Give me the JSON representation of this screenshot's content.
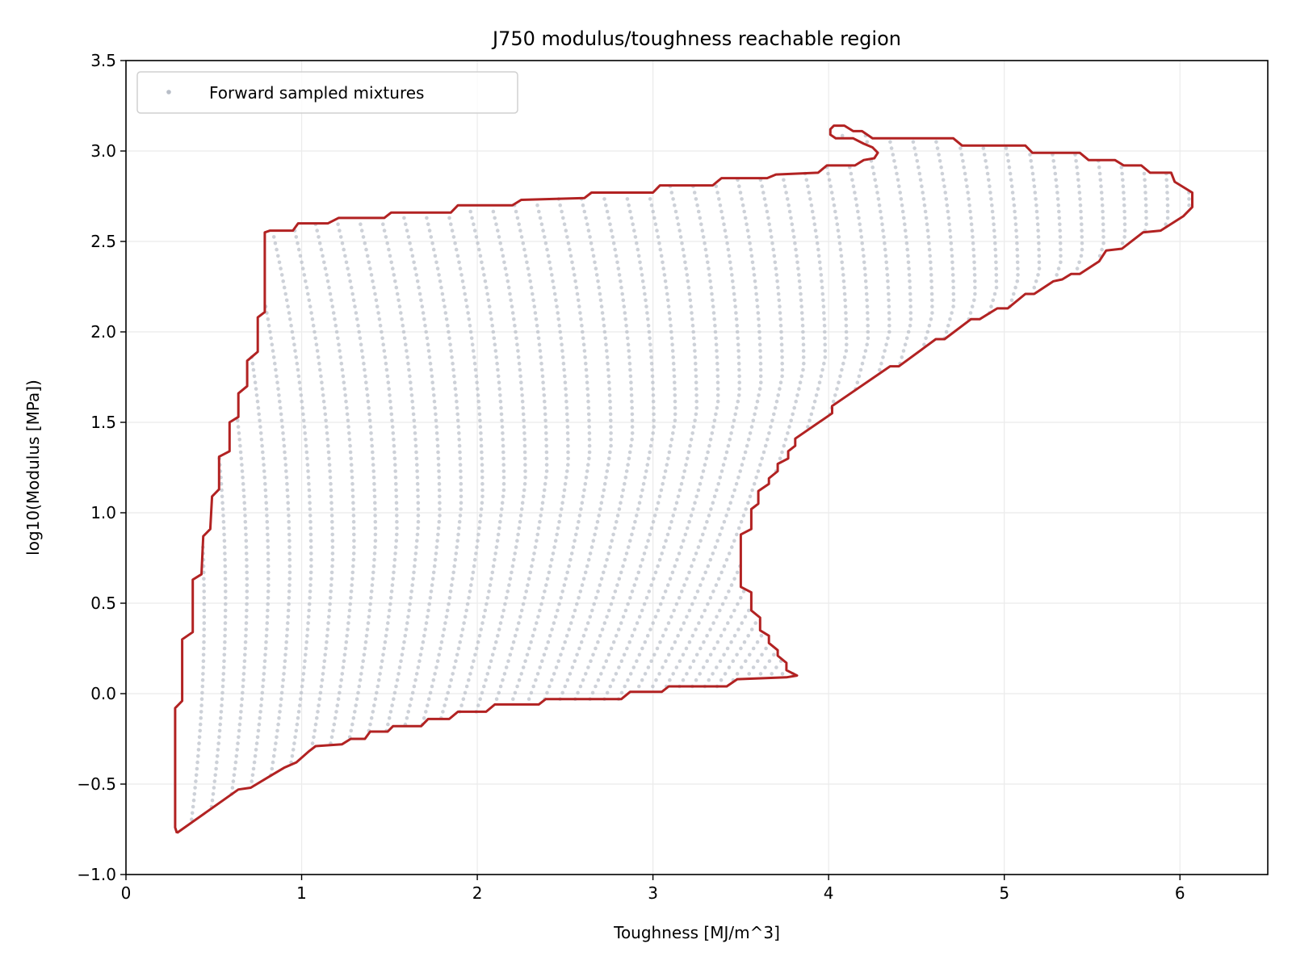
{
  "chart_data": {
    "type": "scatter",
    "title": "J750 modulus/toughness reachable region",
    "xlabel": "Toughness [MJ/m^3]",
    "ylabel": "log10(Modulus [MPa])",
    "xlim": [
      0,
      6.5
    ],
    "ylim": [
      -1.0,
      3.5
    ],
    "xticks": [
      0,
      1,
      2,
      3,
      4,
      5,
      6
    ],
    "xtick_labels": [
      "0",
      "1",
      "2",
      "3",
      "4",
      "5",
      "6"
    ],
    "yticks": [
      -1.0,
      -0.5,
      0.0,
      0.5,
      1.0,
      1.5,
      2.0,
      2.5,
      3.0,
      3.5
    ],
    "ytick_labels": [
      "−1.0",
      "−0.5",
      "0.0",
      "0.5",
      "1.0",
      "1.5",
      "2.0",
      "2.5",
      "3.0",
      "3.5"
    ],
    "grid": true,
    "legend_placement": "top-left",
    "series": [
      {
        "name": "Forward sampled mixtures",
        "kind": "scatter",
        "color": "#b8bec8"
      }
    ],
    "boundary": {
      "kind": "line",
      "color": "#b22222",
      "points": [
        [
          0.29,
          -0.77
        ],
        [
          0.28,
          -0.74
        ],
        [
          0.28,
          -0.08
        ],
        [
          0.32,
          -0.04
        ],
        [
          0.32,
          0.3
        ],
        [
          0.38,
          0.34
        ],
        [
          0.38,
          0.63
        ],
        [
          0.43,
          0.66
        ],
        [
          0.44,
          0.87
        ],
        [
          0.48,
          0.91
        ],
        [
          0.49,
          1.09
        ],
        [
          0.53,
          1.13
        ],
        [
          0.53,
          1.31
        ],
        [
          0.59,
          1.34
        ],
        [
          0.59,
          1.5
        ],
        [
          0.64,
          1.53
        ],
        [
          0.64,
          1.66
        ],
        [
          0.69,
          1.7
        ],
        [
          0.69,
          1.84
        ],
        [
          0.75,
          1.89
        ],
        [
          0.75,
          2.08
        ],
        [
          0.79,
          2.11
        ],
        [
          0.79,
          2.55
        ],
        [
          0.82,
          2.56
        ],
        [
          0.95,
          2.56
        ],
        [
          0.98,
          2.6
        ],
        [
          1.15,
          2.6
        ],
        [
          1.21,
          2.63
        ],
        [
          1.47,
          2.63
        ],
        [
          1.51,
          2.66
        ],
        [
          1.85,
          2.66
        ],
        [
          1.89,
          2.7
        ],
        [
          2.2,
          2.7
        ],
        [
          2.25,
          2.73
        ],
        [
          2.61,
          2.74
        ],
        [
          2.65,
          2.77
        ],
        [
          3.0,
          2.77
        ],
        [
          3.04,
          2.81
        ],
        [
          3.34,
          2.81
        ],
        [
          3.39,
          2.85
        ],
        [
          3.65,
          2.85
        ],
        [
          3.7,
          2.87
        ],
        [
          3.94,
          2.88
        ],
        [
          3.99,
          2.92
        ],
        [
          4.15,
          2.92
        ],
        [
          4.2,
          2.95
        ],
        [
          4.26,
          2.96
        ],
        [
          4.28,
          2.99
        ],
        [
          4.25,
          3.02
        ],
        [
          4.2,
          3.04
        ],
        [
          4.14,
          3.07
        ],
        [
          4.04,
          3.07
        ],
        [
          4.01,
          3.09
        ],
        [
          4.01,
          3.12
        ],
        [
          4.03,
          3.14
        ],
        [
          4.09,
          3.14
        ],
        [
          4.14,
          3.11
        ],
        [
          4.19,
          3.11
        ],
        [
          4.25,
          3.07
        ],
        [
          4.71,
          3.07
        ],
        [
          4.76,
          3.03
        ],
        [
          5.12,
          3.03
        ],
        [
          5.16,
          2.99
        ],
        [
          5.43,
          2.99
        ],
        [
          5.48,
          2.95
        ],
        [
          5.63,
          2.95
        ],
        [
          5.68,
          2.92
        ],
        [
          5.78,
          2.92
        ],
        [
          5.83,
          2.88
        ],
        [
          5.95,
          2.88
        ],
        [
          5.97,
          2.83
        ],
        [
          6.07,
          2.77
        ],
        [
          6.07,
          2.69
        ],
        [
          6.02,
          2.64
        ],
        [
          5.89,
          2.56
        ],
        [
          5.79,
          2.55
        ],
        [
          5.67,
          2.46
        ],
        [
          5.58,
          2.45
        ],
        [
          5.54,
          2.39
        ],
        [
          5.43,
          2.32
        ],
        [
          5.38,
          2.32
        ],
        [
          5.33,
          2.29
        ],
        [
          5.28,
          2.28
        ],
        [
          5.17,
          2.21
        ],
        [
          5.12,
          2.21
        ],
        [
          5.02,
          2.13
        ],
        [
          4.96,
          2.13
        ],
        [
          4.86,
          2.07
        ],
        [
          4.81,
          2.07
        ],
        [
          4.66,
          1.96
        ],
        [
          4.61,
          1.96
        ],
        [
          4.4,
          1.81
        ],
        [
          4.35,
          1.81
        ],
        [
          4.02,
          1.59
        ],
        [
          4.02,
          1.55
        ],
        [
          3.81,
          1.41
        ],
        [
          3.81,
          1.37
        ],
        [
          3.77,
          1.34
        ],
        [
          3.77,
          1.3
        ],
        [
          3.71,
          1.27
        ],
        [
          3.71,
          1.23
        ],
        [
          3.66,
          1.19
        ],
        [
          3.66,
          1.16
        ],
        [
          3.6,
          1.12
        ],
        [
          3.6,
          1.05
        ],
        [
          3.56,
          1.02
        ],
        [
          3.56,
          0.91
        ],
        [
          3.5,
          0.88
        ],
        [
          3.5,
          0.59
        ],
        [
          3.56,
          0.56
        ],
        [
          3.56,
          0.46
        ],
        [
          3.61,
          0.42
        ],
        [
          3.61,
          0.35
        ],
        [
          3.66,
          0.32
        ],
        [
          3.66,
          0.28
        ],
        [
          3.71,
          0.24
        ],
        [
          3.71,
          0.21
        ],
        [
          3.76,
          0.17
        ],
        [
          3.76,
          0.13
        ],
        [
          3.82,
          0.1
        ],
        [
          3.76,
          0.09
        ],
        [
          3.48,
          0.08
        ],
        [
          3.42,
          0.04
        ],
        [
          3.09,
          0.04
        ],
        [
          3.05,
          0.01
        ],
        [
          2.87,
          0.01
        ],
        [
          2.82,
          -0.03
        ],
        [
          2.39,
          -0.03
        ],
        [
          2.35,
          -0.06
        ],
        [
          2.1,
          -0.06
        ],
        [
          2.05,
          -0.1
        ],
        [
          1.89,
          -0.1
        ],
        [
          1.84,
          -0.14
        ],
        [
          1.72,
          -0.14
        ],
        [
          1.68,
          -0.18
        ],
        [
          1.52,
          -0.18
        ],
        [
          1.49,
          -0.21
        ],
        [
          1.39,
          -0.21
        ],
        [
          1.36,
          -0.25
        ],
        [
          1.28,
          -0.25
        ],
        [
          1.23,
          -0.28
        ],
        [
          1.08,
          -0.29
        ],
        [
          1.04,
          -0.32
        ],
        [
          0.97,
          -0.38
        ],
        [
          0.9,
          -0.41
        ],
        [
          0.83,
          -0.45
        ],
        [
          0.71,
          -0.52
        ],
        [
          0.64,
          -0.53
        ],
        [
          0.29,
          -0.77
        ]
      ]
    }
  }
}
